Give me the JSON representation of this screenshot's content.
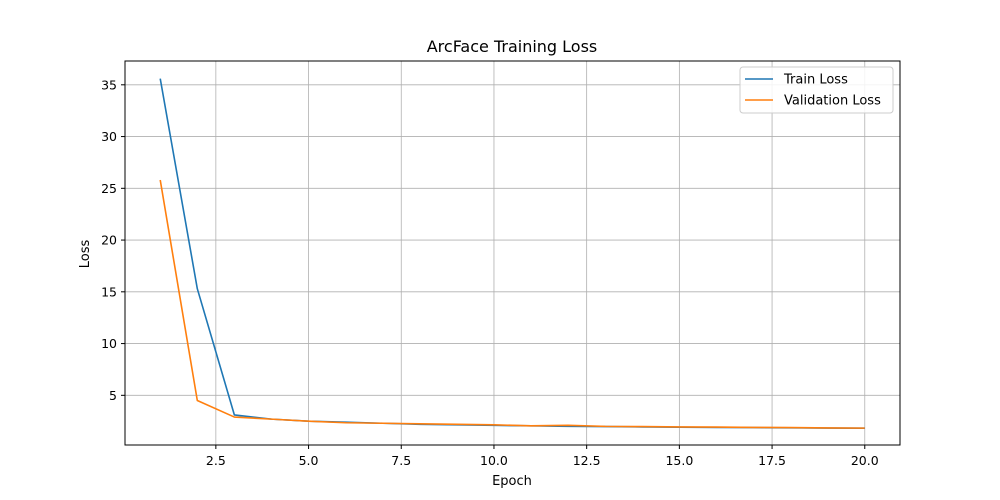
{
  "chart_data": {
    "type": "line",
    "title": "ArcFace Training Loss",
    "xlabel": "Epoch",
    "ylabel": "Loss",
    "xlim": [
      0.05,
      20.95
    ],
    "ylim": [
      0.2,
      37.3
    ],
    "xticks": [
      2.5,
      5.0,
      7.5,
      10.0,
      12.5,
      15.0,
      17.5,
      20.0
    ],
    "xtick_labels": [
      "2.5",
      "5.0",
      "7.5",
      "10.0",
      "12.5",
      "15.0",
      "17.5",
      "20.0"
    ],
    "yticks": [
      5,
      10,
      15,
      20,
      25,
      30,
      35
    ],
    "ytick_labels": [
      "5",
      "10",
      "15",
      "20",
      "25",
      "30",
      "35"
    ],
    "grid": true,
    "legend_position": "top-right",
    "x": [
      1,
      2,
      3,
      4,
      5,
      6,
      7,
      8,
      9,
      10,
      11,
      12,
      13,
      14,
      15,
      16,
      17,
      18,
      19,
      20
    ],
    "series": [
      {
        "name": "Train Loss",
        "color": "#1f77b4",
        "values": [
          35.6,
          15.3,
          3.1,
          2.7,
          2.5,
          2.4,
          2.3,
          2.2,
          2.15,
          2.1,
          2.05,
          2.0,
          1.98,
          1.95,
          1.92,
          1.9,
          1.88,
          1.86,
          1.84,
          1.82
        ]
      },
      {
        "name": "Validation Loss",
        "color": "#ff7f0e",
        "values": [
          25.8,
          4.5,
          2.9,
          2.7,
          2.5,
          2.35,
          2.3,
          2.25,
          2.2,
          2.15,
          2.05,
          2.1,
          2.0,
          1.98,
          1.95,
          1.93,
          1.9,
          1.88,
          1.85,
          1.83
        ]
      }
    ]
  }
}
